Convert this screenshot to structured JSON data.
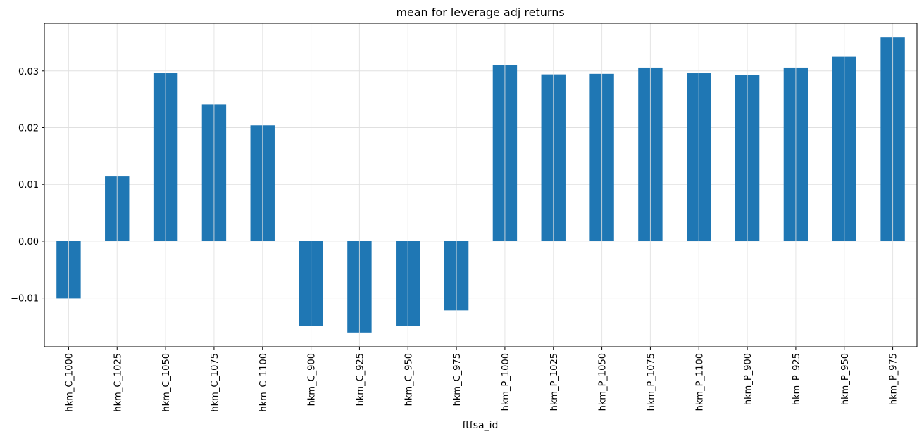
{
  "chart_data": {
    "type": "bar",
    "title": "mean for leverage adj returns",
    "xlabel": "ftfsa_id",
    "ylabel": "",
    "categories": [
      "hkm_C_1000",
      "hkm_C_1025",
      "hkm_C_1050",
      "hkm_C_1075",
      "hkm_C_1100",
      "hkm_C_900",
      "hkm_C_925",
      "hkm_C_950",
      "hkm_C_975",
      "hkm_P_1000",
      "hkm_P_1025",
      "hkm_P_1050",
      "hkm_P_1075",
      "hkm_P_1100",
      "hkm_P_900",
      "hkm_P_925",
      "hkm_P_950",
      "hkm_P_975"
    ],
    "values": [
      -0.0101,
      0.0115,
      0.0296,
      0.0241,
      0.0204,
      -0.0149,
      -0.0161,
      -0.0149,
      -0.0122,
      0.031,
      0.0294,
      0.0295,
      0.0306,
      0.0296,
      0.0293,
      0.0306,
      0.0325,
      0.0359
    ],
    "ylim": [
      -0.0186,
      0.0384
    ],
    "yticks": [
      -0.01,
      0.0,
      0.01,
      0.02,
      0.03
    ],
    "ytick_labels": [
      "−0.01",
      "0.00",
      "0.01",
      "0.02",
      "0.03"
    ],
    "grid": true,
    "bar_color": "#1f77b4",
    "grid_color": "#e0e0e0"
  }
}
